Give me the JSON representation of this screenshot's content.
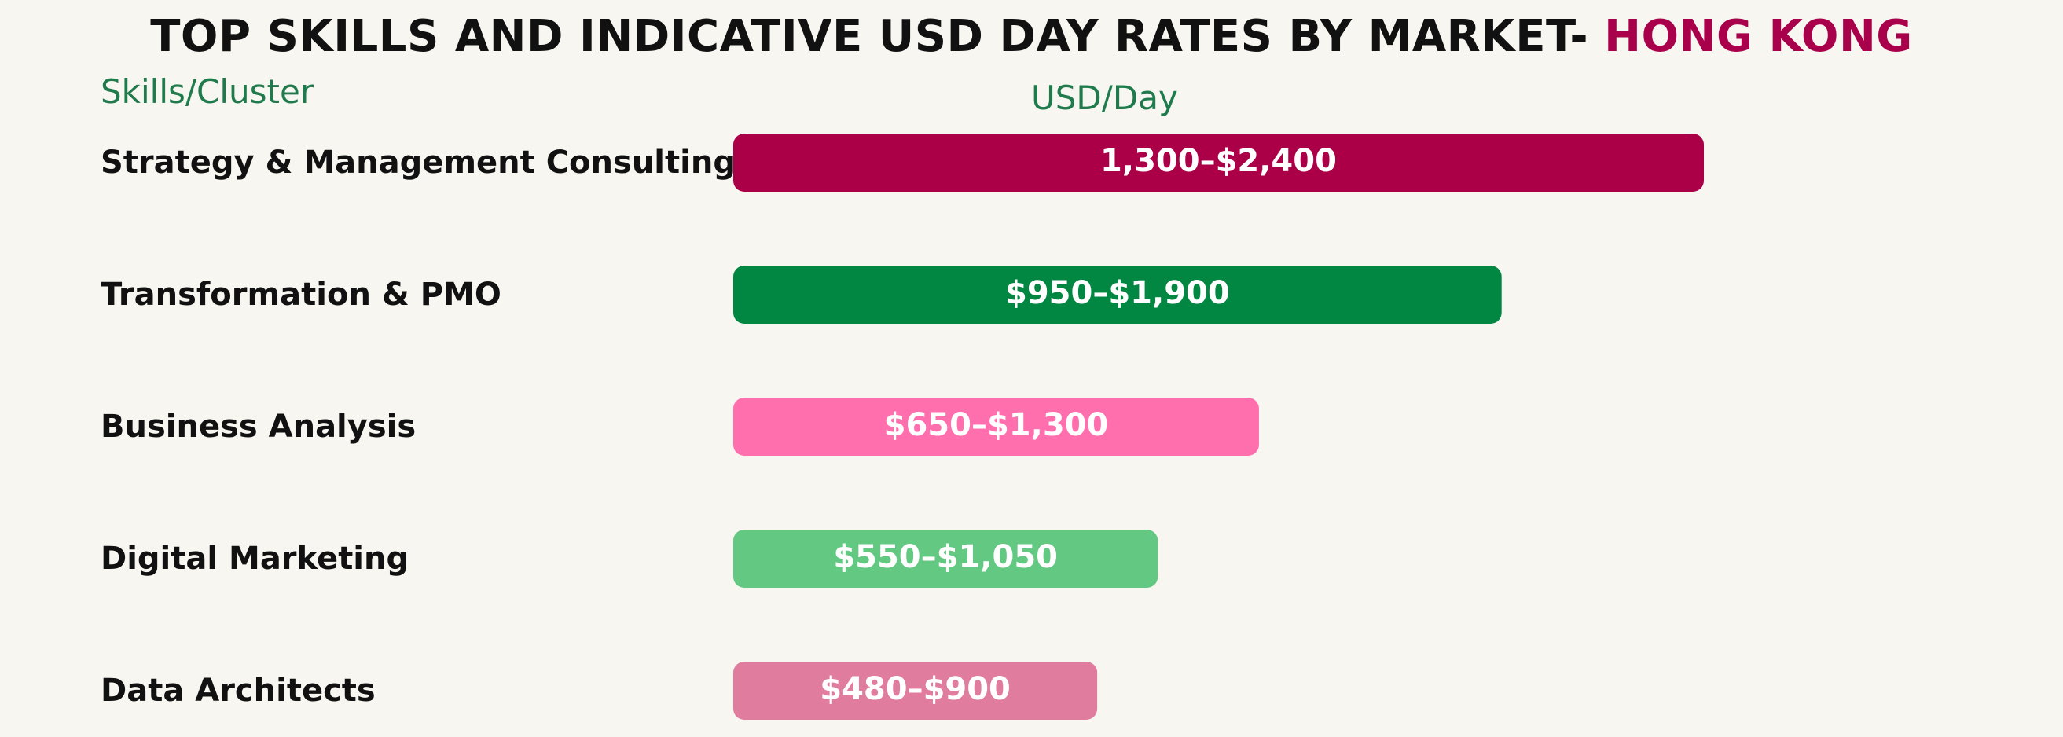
{
  "header": {
    "title_main": "TOP SKILLS AND INDICATIVE USD DAY RATES BY MARKET- ",
    "title_accent": "HONG KONG",
    "left_heading": "Skills/Cluster",
    "right_heading": "USD/Day"
  },
  "colors": {
    "accent": "#a8004a",
    "heading_green": "#1f7a4c"
  },
  "chart_data": {
    "type": "bar",
    "orientation": "horizontal",
    "title": "TOP SKILLS AND INDICATIVE USD DAY RATES BY MARKET- HONG KONG",
    "xlabel": "USD/Day",
    "ylabel": "Skills/Cluster",
    "categories": [
      "Strategy & Management Consulting",
      "Transformation & PMO",
      "Business Analysis",
      "Digital Marketing",
      "Data Architects"
    ],
    "series": [
      {
        "values": [
          2400,
          1900,
          1300,
          1050,
          900
        ]
      }
    ],
    "labels": [
      "1,300–$2,400",
      "$950–$1,900",
      "$650–$1,300",
      "$550–$1,050",
      "$480–$900"
    ],
    "colors": [
      "#ab0047",
      "#028742",
      "#ff6fae",
      "#62c882",
      "#e07c9e"
    ],
    "xlim": [
      0,
      2400
    ],
    "grid": false,
    "legend": "none"
  }
}
